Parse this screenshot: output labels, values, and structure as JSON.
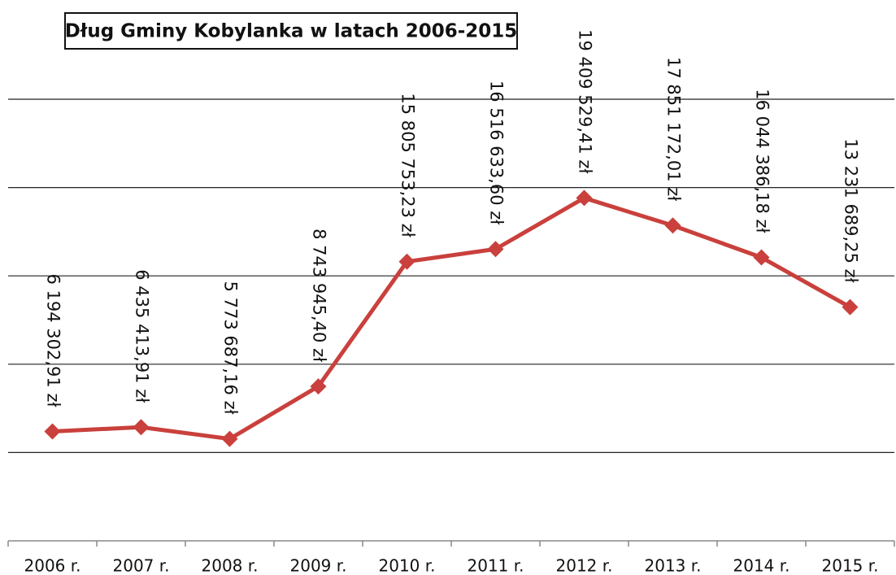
{
  "chart_data": {
    "type": "line",
    "title": "Dług Gminy Kobylanka w latach 2006-2015",
    "categories": [
      "2006 r.",
      "2007 r.",
      "2008 r.",
      "2009 r.",
      "2010 r.",
      "2011 r.",
      "2012 r.",
      "2013 r.",
      "2014 r.",
      "2015 r."
    ],
    "series": [
      {
        "name": "Dług",
        "color": "#c9403c",
        "values": [
          6194302.91,
          6435413.91,
          5773687.16,
          8743945.4,
          15805753.23,
          16516633.6,
          19409529.41,
          17851172.01,
          16044386.18,
          13231689.25
        ],
        "value_labels": [
          "6 194 302,91 zł",
          "6 435 413,91 zł",
          "5 773 687,16 zł",
          "8 743 945,40 zł",
          "15 805 753,23 zł",
          "16 516 633,60 zł",
          "19 409 529,41 zł",
          "17 851 172,01 zł",
          "16 044 386,18 zł",
          "13 231 689,25 zł"
        ]
      }
    ],
    "ylim": [
      0,
      25000000
    ],
    "yticks": [
      0,
      5000000,
      10000000,
      15000000,
      20000000,
      25000000
    ],
    "grid": true
  }
}
